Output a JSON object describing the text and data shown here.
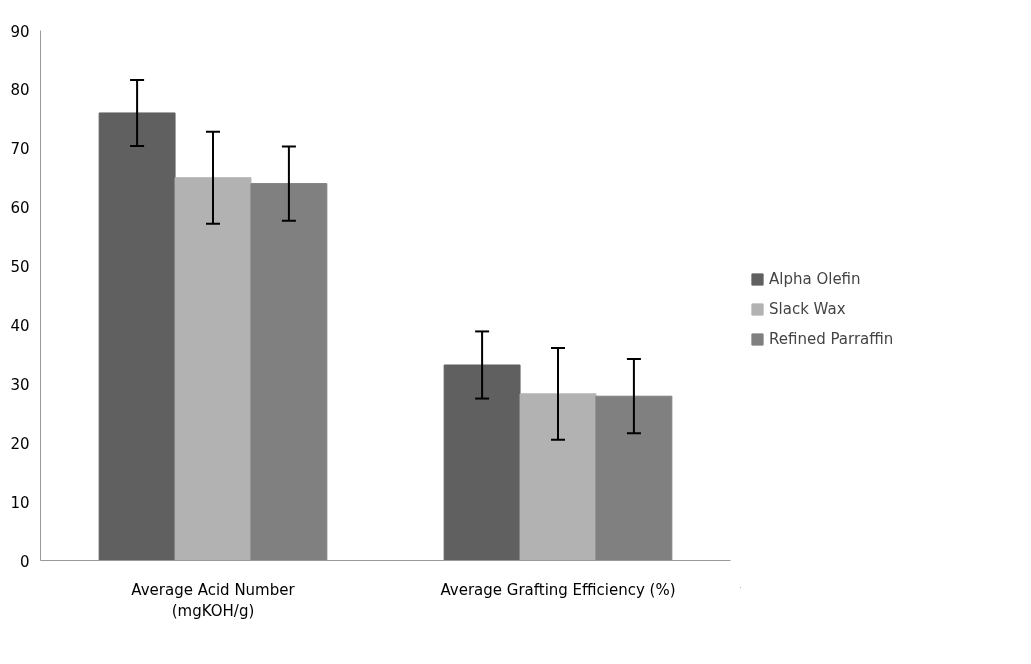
{
  "chart_data": {
    "type": "bar",
    "categories": [
      "Average Acid Number\n(mgKOH/g)",
      "Average Grafting Efficiency (%)"
    ],
    "series": [
      {
        "name": "Alpha Olefin",
        "color": "#606060",
        "values": [
          76,
          33.2
        ],
        "errors": [
          5.6,
          5.7
        ]
      },
      {
        "name": "Slack Wax",
        "color": "#b2b2b2",
        "values": [
          65,
          28.3
        ],
        "errors": [
          7.8,
          7.8
        ]
      },
      {
        "name": "Refined Parraffin",
        "color": "#808080",
        "values": [
          64,
          27.9
        ],
        "errors": [
          6.3,
          6.3
        ]
      }
    ],
    "ylim": [
      0,
      90
    ],
    "yticks": [
      0,
      10,
      20,
      30,
      40,
      50,
      60,
      70,
      80,
      90
    ],
    "grid": false,
    "legend": "right"
  }
}
